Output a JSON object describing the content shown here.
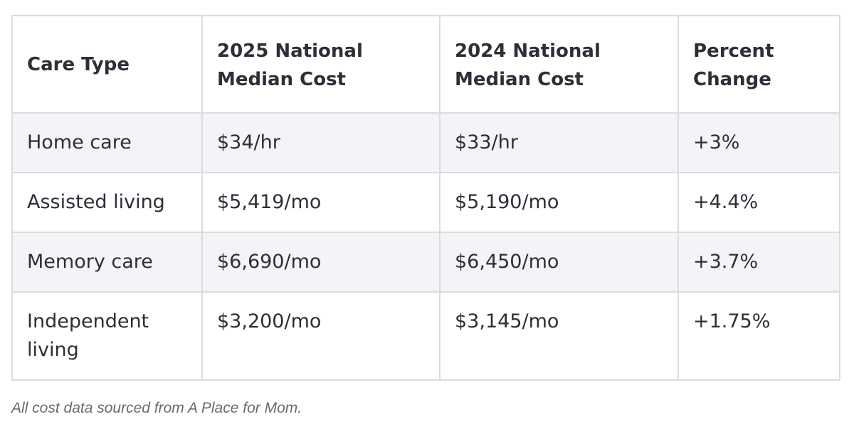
{
  "table": {
    "headers": [
      "Care Type",
      "2025 National Median Cost",
      "2024 National Median Cost",
      "Percent Change"
    ],
    "rows": [
      [
        "Home care",
        "$34/hr",
        "$33/hr",
        "+3%"
      ],
      [
        "Assisted living",
        "$5,419/mo",
        "$5,190/mo",
        "+4.4%"
      ],
      [
        "Memory care",
        "$6,690/mo",
        "$6,450/mo",
        "+3.7%"
      ],
      [
        "Independent living",
        "$3,200/mo",
        "$3,145/mo",
        "+1.75%"
      ]
    ]
  },
  "caption": "All cost data sourced from A Place for Mom.",
  "colors": {
    "shaded_row": "#f3f4f7",
    "border": "#dcdcdf",
    "text": "#2e2e38",
    "caption": "#6a6a70"
  }
}
